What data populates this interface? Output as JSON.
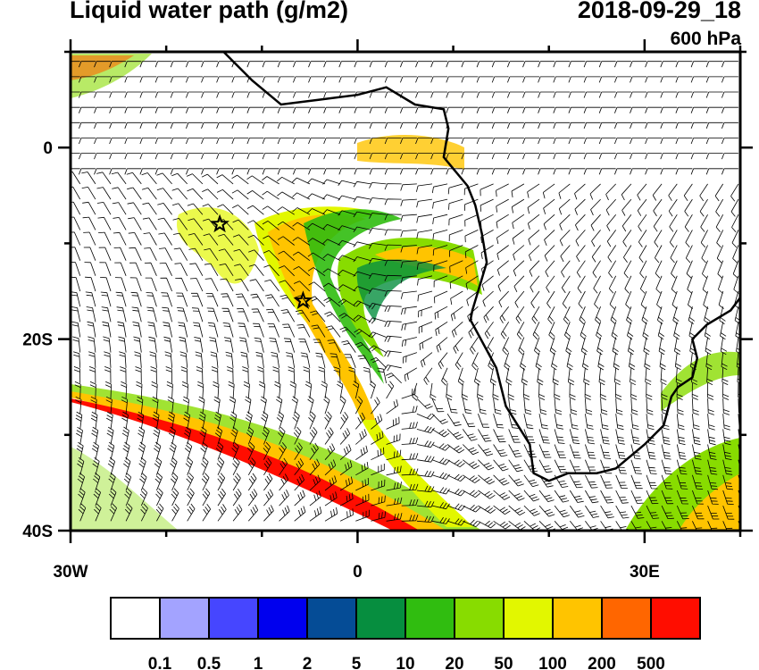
{
  "header": {
    "title": "Liquid water path (g/m2)",
    "time": "2018-09-29_18",
    "level": "600 hPa"
  },
  "chart_data": {
    "type": "heatmap",
    "title": "Liquid water path (g/m2)",
    "projection": "lat-lon",
    "lon_range": [
      -30,
      40
    ],
    "lat_range": [
      -40,
      10
    ],
    "x_ticks": [
      {
        "value": -30,
        "label": "30W"
      },
      {
        "value": 0,
        "label": "0"
      },
      {
        "value": 30,
        "label": "30E"
      }
    ],
    "y_ticks": [
      {
        "value": 0,
        "label": "0"
      },
      {
        "value": -20,
        "label": "20S"
      },
      {
        "value": -40,
        "label": "40S"
      }
    ],
    "overlay": "wind barbs",
    "markers": [
      {
        "symbol": "star",
        "lon": -14.4,
        "lat": -8.0
      },
      {
        "symbol": "star",
        "lon": -5.7,
        "lat": -16.0
      }
    ],
    "colorbar": {
      "labels": [
        "0.1",
        "0.5",
        "1",
        "2",
        "5",
        "10",
        "20",
        "50",
        "100",
        "200",
        "500"
      ],
      "colors": [
        "#ffffff",
        "#a3a3ff",
        "#4646ff",
        "#0000ee",
        "#054c96",
        "#068e3f",
        "#30bd10",
        "#88dc00",
        "#e2f700",
        "#ffc400",
        "#ff6600",
        "#ff0d00"
      ]
    }
  }
}
